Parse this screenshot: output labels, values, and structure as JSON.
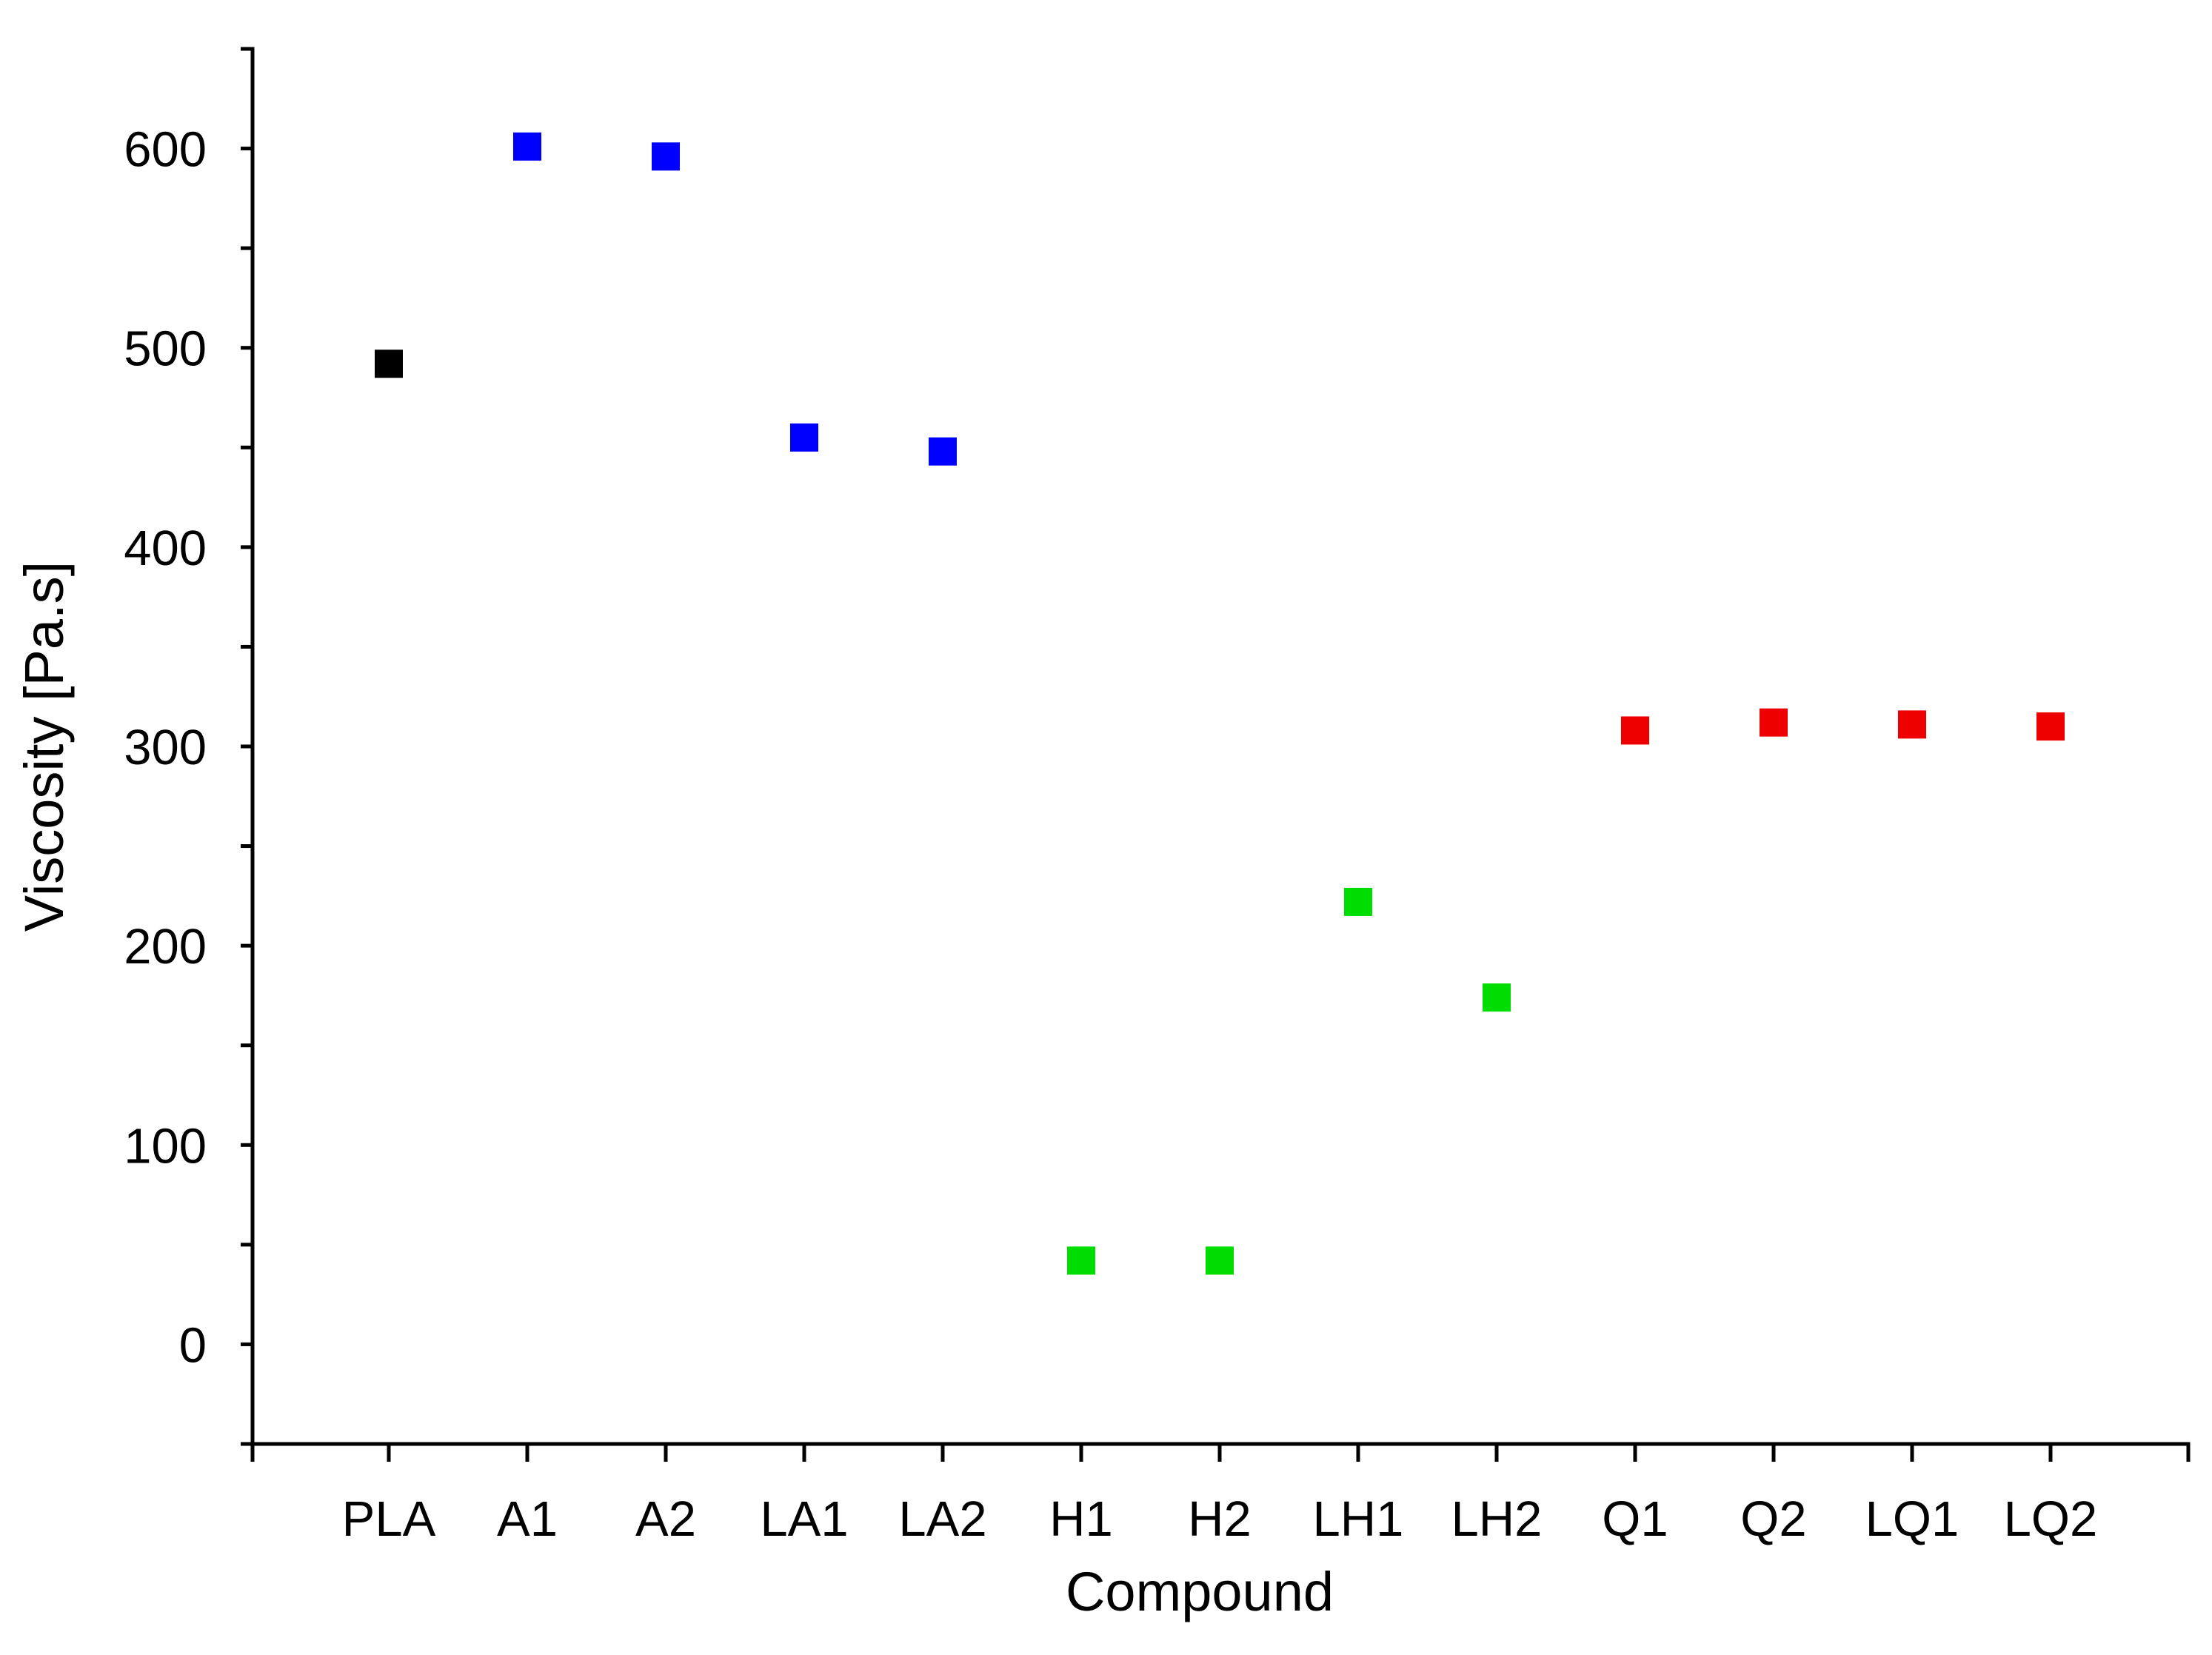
{
  "chart_data": {
    "type": "scatter",
    "title": "",
    "xlabel": "Compound",
    "ylabel": "Viscosity [Pa.s]",
    "ylim": [
      -50,
      650
    ],
    "yticks": [
      0,
      100,
      200,
      300,
      400,
      500,
      600
    ],
    "y_minor_tick_step": 50,
    "grid": false,
    "legend": "none",
    "marker": "square",
    "categories": [
      "PLA",
      "A1",
      "A2",
      "LA1",
      "LA2",
      "H1",
      "H2",
      "LH1",
      "LH2",
      "Q1",
      "Q2",
      "LQ1",
      "LQ2"
    ],
    "points": [
      {
        "x": "PLA",
        "y": 492,
        "color": "#000000"
      },
      {
        "x": "A1",
        "y": 601,
        "color": "#0000ff"
      },
      {
        "x": "A2",
        "y": 596,
        "color": "#0000ff"
      },
      {
        "x": "LA1",
        "y": 455,
        "color": "#0000ff"
      },
      {
        "x": "LA2",
        "y": 448,
        "color": "#0000ff"
      },
      {
        "x": "H1",
        "y": 42,
        "color": "#00dd00"
      },
      {
        "x": "H2",
        "y": 42,
        "color": "#00dd00"
      },
      {
        "x": "LH1",
        "y": 222,
        "color": "#00dd00"
      },
      {
        "x": "LH2",
        "y": 174,
        "color": "#00dd00"
      },
      {
        "x": "Q1",
        "y": 308,
        "color": "#ee0000"
      },
      {
        "x": "Q2",
        "y": 312,
        "color": "#ee0000"
      },
      {
        "x": "LQ1",
        "y": 311,
        "color": "#ee0000"
      },
      {
        "x": "LQ2",
        "y": 310,
        "color": "#ee0000"
      }
    ]
  }
}
